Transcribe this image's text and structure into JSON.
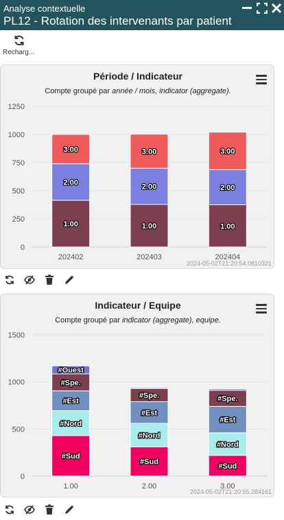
{
  "window": {
    "subtitle": "Analyse contextuelle",
    "title": "PL12 - Rotation des intervenants par patient"
  },
  "toolbar": {
    "reload_label": "Recharg..."
  },
  "panels": [
    {
      "title": "Période / Indicateur",
      "subtitle_prefix": "Compte groupé par ",
      "subtitle_em": "année / mois, indicator (aggregate).",
      "timestamp": "2024-05-02T21:20:54.0810321"
    },
    {
      "title": "Indicateur / Equipe",
      "subtitle_prefix": "Compte groupé par ",
      "subtitle_em": "indicator (aggregate), equipe.",
      "timestamp": "2024-05-02T21:20:55.284161"
    }
  ],
  "chart_data": [
    {
      "type": "bar",
      "stacked": true,
      "categories": [
        "202402",
        "202403",
        "202404"
      ],
      "yticks": [
        0,
        250,
        500,
        750,
        1000,
        1250
      ],
      "ylim": [
        0,
        1250
      ],
      "series": [
        {
          "name": "1.00",
          "label": "1.00",
          "color": "#7d3f50",
          "values": [
            415,
            378,
            375
          ]
        },
        {
          "name": "2.00",
          "label": "2.00",
          "color": "#7b80e0",
          "values": [
            325,
            322,
            312
          ]
        },
        {
          "name": "3.00",
          "label": "3.00",
          "color": "#f05a5a",
          "values": [
            260,
            302,
            333
          ]
        }
      ]
    },
    {
      "type": "bar",
      "stacked": true,
      "categories": [
        "1.00",
        "2.00",
        "3.00"
      ],
      "yticks": [
        0,
        500,
        1000,
        1500
      ],
      "ylim": [
        0,
        1500
      ],
      "series": [
        {
          "name": "#Sud",
          "label": "#Sud",
          "color": "#f00060",
          "values": [
            430,
            310,
            220
          ]
        },
        {
          "name": "#Nord",
          "label": "#Nord",
          "color": "#a8ecec",
          "values": [
            265,
            250,
            240
          ]
        },
        {
          "name": "#Est",
          "label": "#Est",
          "color": "#7090c0",
          "values": [
            210,
            230,
            280
          ]
        },
        {
          "name": "#Spe.",
          "label": "#Spe.",
          "color": "#7d3f50",
          "values": [
            180,
            140,
            170
          ]
        },
        {
          "name": "#Ouest",
          "label": "#Ouest",
          "color": "#6e74d8",
          "values": [
            85,
            10,
            15
          ]
        }
      ]
    }
  ],
  "icons": [
    "minimize-icon",
    "maximize-icon",
    "close-icon",
    "reload-icon",
    "menu-icon",
    "refresh-icon",
    "hide-icon",
    "delete-icon",
    "edit-icon"
  ]
}
